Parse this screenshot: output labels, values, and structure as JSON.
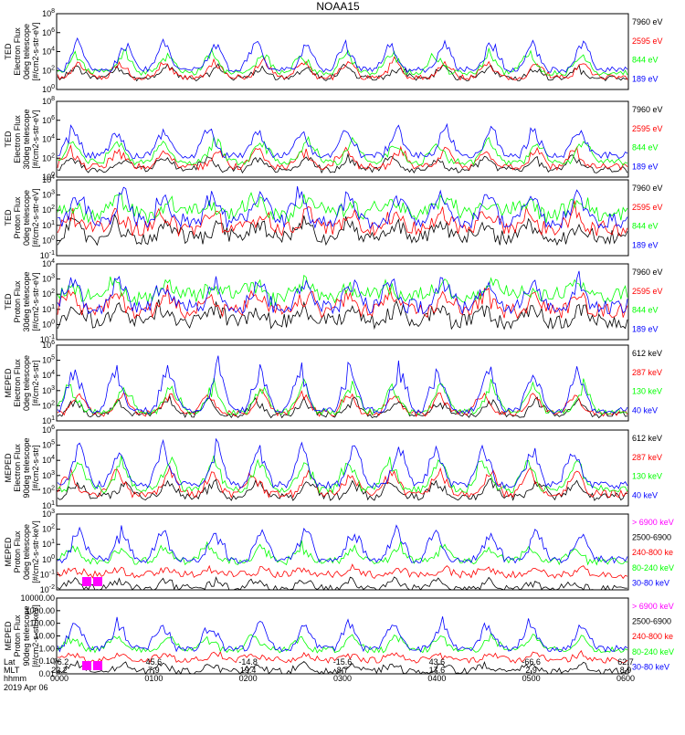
{
  "title": "NOAA15",
  "colors": {
    "black": "#000000",
    "red": "#ff0000",
    "green": "#00ff00",
    "blue": "#0000ff",
    "magenta": "#ff00ff"
  },
  "panels": [
    {
      "id": "ted-electron-0deg",
      "ylabel_lines": [
        "TED",
        "Electron Flux",
        "0deg telescope",
        "[#/cm2-s-str-eV]"
      ],
      "ytick_labels": [
        "10^0",
        "10^2",
        "10^4",
        "10^6",
        "10^8"
      ],
      "log_range": [
        0,
        8
      ],
      "legend": [
        {
          "text": "7960 eV",
          "color": "#000000"
        },
        {
          "text": "2595 eV",
          "color": "#ff0000"
        },
        {
          "text": "844 eV",
          "color": "#00ff00"
        },
        {
          "text": "189 eV",
          "color": "#0000ff"
        }
      ]
    },
    {
      "id": "ted-electron-30deg",
      "ylabel_lines": [
        "TED",
        "Electron Flux",
        "30deg telescope",
        "[#/cm2-s-str-eV]"
      ],
      "ytick_labels": [
        "10^0",
        "10^2",
        "10^4",
        "10^6",
        "10^8"
      ],
      "log_range": [
        0,
        8
      ],
      "legend": [
        {
          "text": "7960 eV",
          "color": "#000000"
        },
        {
          "text": "2595 eV",
          "color": "#ff0000"
        },
        {
          "text": "844 eV",
          "color": "#00ff00"
        },
        {
          "text": "189 eV",
          "color": "#0000ff"
        }
      ]
    },
    {
      "id": "ted-proton-0deg",
      "ylabel_lines": [
        "TED",
        "Proton Flux",
        "0deg telescope",
        "[#/cm2-s-str-eV]"
      ],
      "ytick_labels": [
        "10^-1",
        "10^0",
        "10^1",
        "10^2",
        "10^3",
        "10^4"
      ],
      "log_range": [
        -1,
        4
      ],
      "legend": [
        {
          "text": "7960 eV",
          "color": "#000000"
        },
        {
          "text": "2595 eV",
          "color": "#ff0000"
        },
        {
          "text": "844 eV",
          "color": "#00ff00"
        },
        {
          "text": "189 eV",
          "color": "#0000ff"
        }
      ]
    },
    {
      "id": "ted-proton-30deg",
      "ylabel_lines": [
        "TED",
        "Proton Flux",
        "30deg telescope",
        "[#/cm2-s-str-eV]"
      ],
      "ytick_labels": [
        "10^-1",
        "10^0",
        "10^1",
        "10^2",
        "10^3",
        "10^4"
      ],
      "log_range": [
        -1,
        4
      ],
      "legend": [
        {
          "text": "7960 eV",
          "color": "#000000"
        },
        {
          "text": "2595 eV",
          "color": "#ff0000"
        },
        {
          "text": "844 eV",
          "color": "#00ff00"
        },
        {
          "text": "189 eV",
          "color": "#0000ff"
        }
      ]
    },
    {
      "id": "meped-electron-0deg",
      "ylabel_lines": [
        "MEPED",
        "Electron Flux",
        "0deg telescope",
        "[#/cm2-s-str]"
      ],
      "ytick_labels": [
        "10^1",
        "10^2",
        "10^3",
        "10^4",
        "10^5",
        "10^6"
      ],
      "log_range": [
        1,
        6
      ],
      "legend": [
        {
          "text": "612 keV",
          "color": "#000000"
        },
        {
          "text": "287 keV",
          "color": "#ff0000"
        },
        {
          "text": "130 keV",
          "color": "#00ff00"
        },
        {
          "text": "40 keV",
          "color": "#0000ff"
        }
      ]
    },
    {
      "id": "meped-electron-90deg",
      "ylabel_lines": [
        "MEPED",
        "Electron Flux",
        "90deg telescope",
        "[#/cm2-s-str]"
      ],
      "ytick_labels": [
        "10^1",
        "10^2",
        "10^3",
        "10^4",
        "10^5",
        "10^6"
      ],
      "log_range": [
        1,
        6
      ],
      "legend": [
        {
          "text": "612 keV",
          "color": "#000000"
        },
        {
          "text": "287 keV",
          "color": "#ff0000"
        },
        {
          "text": "130 keV",
          "color": "#00ff00"
        },
        {
          "text": "40 keV",
          "color": "#0000ff"
        }
      ]
    },
    {
      "id": "meped-proton-0deg",
      "ylabel_lines": [
        "MEPED",
        "Proton Flux",
        "0deg telescope",
        "[#/cm2-s-str-keV]"
      ],
      "ytick_labels": [
        "10^-2",
        "10^-1",
        "10^0",
        "10^1",
        "10^2",
        "10^3"
      ],
      "log_range": [
        -2,
        3
      ],
      "legend": [
        {
          "text": "> 6900 keV",
          "color": "#ff00ff"
        },
        {
          "text": "2500-6900",
          "color": "#000000"
        },
        {
          "text": "240-800 ke",
          "color": "#ff0000"
        },
        {
          "text": "80-240 keV",
          "color": "#00ff00"
        },
        {
          "text": "30-80 keV",
          "color": "#0000ff"
        }
      ]
    },
    {
      "id": "meped-proton-90deg",
      "ylabel_lines": [
        "MEPED",
        "Proton Flux",
        "90deg telescope",
        "[#/cm2-s-str-keV]"
      ],
      "ytick_labels": [
        "0.01",
        "0.10",
        "1.00",
        "10.00",
        "100.00",
        "1000.00",
        "10000.00"
      ],
      "log_range": [
        -2,
        4
      ],
      "legend": [
        {
          "text": "> 6900 keV",
          "color": "#ff00ff"
        },
        {
          "text": "2500-6900",
          "color": "#000000"
        },
        {
          "text": "240-800 ke",
          "color": "#ff0000"
        },
        {
          "text": "80-240 keV",
          "color": "#00ff00"
        },
        {
          "text": "30-80 keV",
          "color": "#0000ff"
        }
      ]
    }
  ],
  "xaxis": {
    "row_labels": [
      "Lat",
      "MLT",
      "hhmm"
    ],
    "lat": [
      "-76.2",
      "45.6",
      "-14.8",
      "-15.6",
      "43.6",
      "-66.6",
      "62.7"
    ],
    "mlt": [
      "22.2",
      "7.9",
      "19.4",
      "8.7",
      "17.6",
      "2.9",
      "8.9"
    ],
    "hhmm": [
      "0000",
      "0100",
      "0200",
      "0300",
      "0400",
      "0500",
      "0600"
    ],
    "date": "2019 Apr 06"
  },
  "chart_data": {
    "type": "line",
    "title": "NOAA15",
    "x_unit": "hhmm",
    "x_range": [
      "0000",
      "0600"
    ],
    "passes": [
      {
        "time_hhmm": "0010",
        "channel": "TED electron 189 eV",
        "peak_flux_log10": 5.0
      },
      {
        "time_hhmm": "0055",
        "channel": "TED electron 189 eV",
        "peak_flux_log10": 6.3
      },
      {
        "time_hhmm": "0245",
        "channel": "TED electron 189 eV",
        "peak_flux_log10": 7.0
      },
      {
        "time_hhmm": "0345",
        "channel": "TED electron 189 eV",
        "peak_flux_log10": 6.6
      },
      {
        "time_hhmm": "0550",
        "channel": "TED electron 189 eV",
        "peak_flux_log10": 6.6
      },
      {
        "time_hhmm": "0010",
        "channel": "MEPED electron 40 keV",
        "peak_flux_log10": 4.0
      },
      {
        "time_hhmm": "0230",
        "channel": "MEPED electron 40 keV",
        "peak_flux_log10": 5.0
      },
      {
        "time_hhmm": "0350",
        "channel": "MEPED electron 40 keV",
        "peak_flux_log10": 5.6
      },
      {
        "time_hhmm": "0510",
        "channel": "MEPED electron 40 keV",
        "peak_flux_log10": 5.8
      }
    ]
  }
}
